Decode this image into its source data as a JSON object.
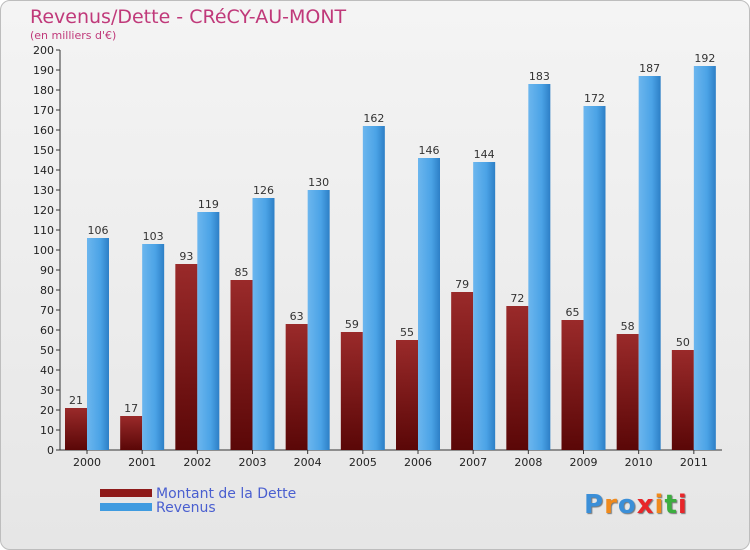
{
  "chart_data": {
    "type": "bar",
    "title": "Revenus/Dette - CRéCY-AU-MONT",
    "subtitle": "(en milliers d'€)",
    "categories": [
      "2000",
      "2001",
      "2002",
      "2003",
      "2004",
      "2005",
      "2006",
      "2007",
      "2008",
      "2009",
      "2010",
      "2011"
    ],
    "series": [
      {
        "name": "Montant de la Dette",
        "color": "#8e1b1b",
        "values": [
          21,
          17,
          93,
          85,
          63,
          59,
          55,
          79,
          72,
          65,
          58,
          50
        ]
      },
      {
        "name": "Revenus",
        "color": "#3f9be0",
        "values": [
          106,
          103,
          119,
          126,
          130,
          162,
          146,
          144,
          183,
          172,
          187,
          192
        ]
      }
    ],
    "ylim": [
      0,
      200
    ],
    "ytick_step": 10,
    "grid": false,
    "legend": "bottom-left"
  },
  "logo": {
    "letters": [
      "P",
      "r",
      "o",
      "x",
      "i",
      "t",
      "i"
    ],
    "colors": [
      "#3b8fd8",
      "#f08a1c",
      "#3b8fd8",
      "#e8262a",
      "#f08a1c",
      "#3cae3f",
      "#e8262a"
    ]
  }
}
